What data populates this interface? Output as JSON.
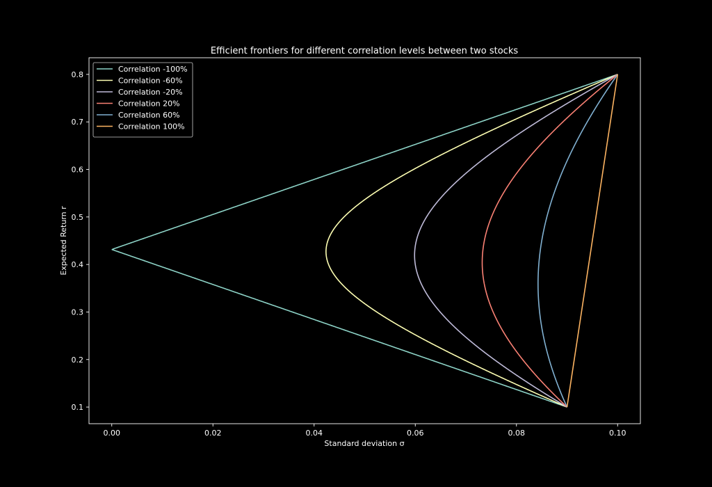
{
  "chart_data": {
    "type": "line",
    "title": "Efficient frontiers for different correlation levels between two stocks",
    "xlabel": "Standard deviation σ",
    "ylabel": "Expected Return r",
    "xlim": [
      -0.0045,
      0.1045
    ],
    "ylim": [
      0.065,
      0.835
    ],
    "xticks": [
      0.0,
      0.02,
      0.04,
      0.06,
      0.08,
      0.1
    ],
    "xtick_labels": [
      "0.00",
      "0.02",
      "0.04",
      "0.06",
      "0.08",
      "0.10"
    ],
    "yticks": [
      0.1,
      0.2,
      0.3,
      0.4,
      0.5,
      0.6,
      0.7,
      0.8
    ],
    "ytick_labels": [
      "0.1",
      "0.2",
      "0.3",
      "0.4",
      "0.5",
      "0.6",
      "0.7",
      "0.8"
    ],
    "grid": false,
    "legend_position": "top-left",
    "background": "#000000",
    "assets": {
      "a": {
        "sigma": 0.09,
        "r": 0.1
      },
      "b": {
        "sigma": 0.1,
        "r": 0.8
      }
    },
    "series": [
      {
        "name": "Correlation -100%",
        "rho": -1.0,
        "color": "#8dd3c7"
      },
      {
        "name": "Correlation -60%",
        "rho": -0.6,
        "color": "#feffb3"
      },
      {
        "name": "Correlation -20%",
        "rho": -0.2,
        "color": "#bfbbd9"
      },
      {
        "name": "Correlation 20%",
        "rho": 0.2,
        "color": "#fa8174"
      },
      {
        "name": "Correlation 60%",
        "rho": 0.6,
        "color": "#81b1d2"
      },
      {
        "name": "Correlation 100%",
        "rho": 1.0,
        "color": "#fdb462"
      }
    ]
  }
}
